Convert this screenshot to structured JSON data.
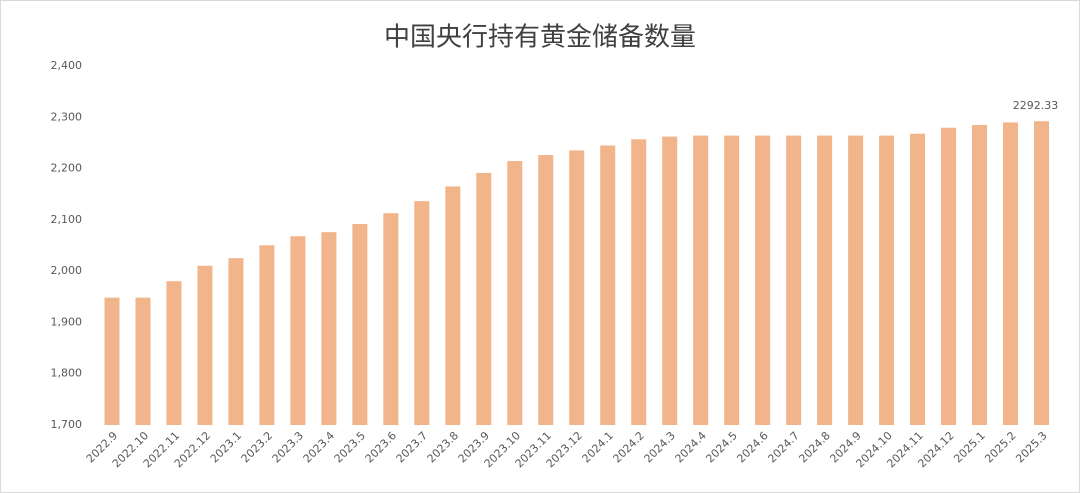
{
  "chart_data": {
    "type": "bar",
    "title": "中国央行持有黄金储备数量",
    "categories": [
      "2022.9",
      "2022.10",
      "2022.11",
      "2022.12",
      "2023.1",
      "2023.2",
      "2023.3",
      "2023.4",
      "2023.5",
      "2023.6",
      "2023.7",
      "2023.8",
      "2023.9",
      "2023.10",
      "2023.11",
      "2023.12",
      "2024.1",
      "2024.2",
      "2024.3",
      "2024.4",
      "2024.5",
      "2024.6",
      "2024.7",
      "2024.8",
      "2024.9",
      "2024.10",
      "2024.11",
      "2024.12",
      "2025.1",
      "2025.2",
      "2025.3"
    ],
    "values": [
      1948.3,
      1948.3,
      1980.4,
      2010.5,
      2025.3,
      2050.4,
      2068.1,
      2076.0,
      2092.0,
      2113.0,
      2136.5,
      2165.2,
      2191.5,
      2214.7,
      2226.3,
      2235.4,
      2245.0,
      2257.1,
      2262.4,
      2264.3,
      2264.3,
      2264.3,
      2264.3,
      2264.3,
      2264.3,
      2264.3,
      2268.0,
      2279.6,
      2285.0,
      2290.0,
      2292.33
    ],
    "labeled_index": 30,
    "color": "#f2b48a",
    "ylim": [
      1700,
      2400
    ],
    "yticks": [
      {
        "value": 1700,
        "label": "1,700"
      },
      {
        "value": 1800,
        "label": "1,800"
      },
      {
        "value": 1900,
        "label": "1,900"
      },
      {
        "value": 2000,
        "label": "2,000"
      },
      {
        "value": 2100,
        "label": "2,100"
      },
      {
        "value": 2200,
        "label": "2,200"
      },
      {
        "value": 2300,
        "label": "2,300"
      },
      {
        "value": 2400,
        "label": "2,400"
      }
    ],
    "grid": false
  }
}
